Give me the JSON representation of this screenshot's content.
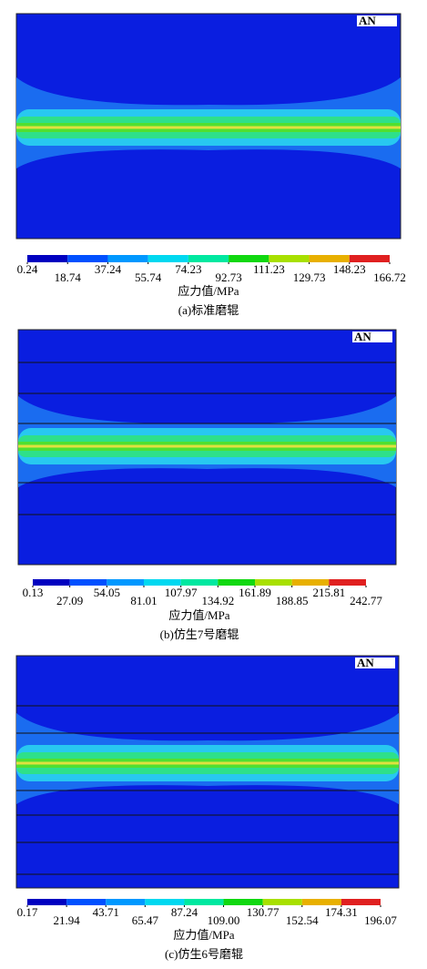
{
  "figures": [
    {
      "logo": "AN",
      "unit": "应力值/MPa",
      "caption": "(a)标准磨辊",
      "colorbar": {
        "ticks": [
          0.24,
          18.74,
          37.24,
          55.74,
          74.23,
          92.73,
          111.23,
          129.73,
          148.23,
          166.72
        ],
        "colors": [
          "#0000c0",
          "#0050ff",
          "#0098ff",
          "#00d8f0",
          "#00e8a0",
          "#10d810",
          "#a8e000",
          "#e8b000",
          "#e02020"
        ]
      }
    },
    {
      "logo": "AN",
      "unit": "应力值/MPa",
      "caption": "(b)仿生7号磨辊",
      "colorbar": {
        "ticks": [
          0.13,
          27.09,
          54.05,
          81.01,
          107.97,
          134.92,
          161.89,
          188.85,
          215.81,
          242.77
        ],
        "colors": [
          "#0000c0",
          "#0050ff",
          "#0098ff",
          "#00d8f0",
          "#00e8a0",
          "#10d810",
          "#a8e000",
          "#e8b000",
          "#e02020"
        ]
      }
    },
    {
      "logo": "AN",
      "unit": "应力值/MPa",
      "caption": "(c)仿生6号磨辊",
      "colorbar": {
        "ticks": [
          0.17,
          21.94,
          43.71,
          65.47,
          87.24,
          {
            "value": 109,
            "label": "109.00"
          },
          130.77,
          152.54,
          174.31,
          196.07
        ],
        "colors": [
          "#0000c0",
          "#0050ff",
          "#0098ff",
          "#00d8f0",
          "#00e8a0",
          "#10d810",
          "#a8e000",
          "#e8b000",
          "#e02020"
        ]
      }
    }
  ]
}
